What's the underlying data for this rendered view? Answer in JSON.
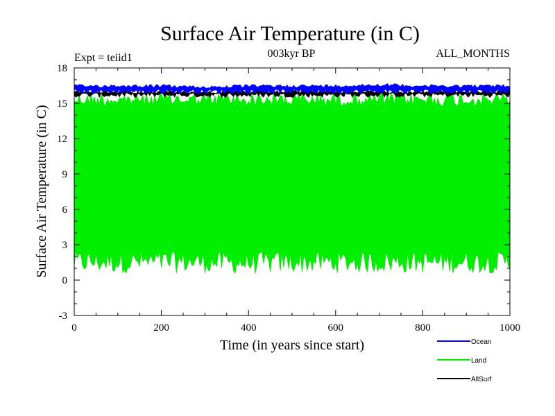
{
  "chart_data": {
    "type": "line",
    "title": "Surface Air Temperature (in C)",
    "subtitle": "003kyr BP",
    "expt_label": "Expt = teiid1",
    "months_label": "ALL_MONTHS",
    "xlabel": "Time (in years since start)",
    "ylabel": "Surface Air Temperature (in C)",
    "xlim": [
      0,
      1000
    ],
    "ylim": [
      -3,
      18
    ],
    "x_ticks": [
      0,
      200,
      400,
      600,
      800,
      1000
    ],
    "y_ticks": [
      -3,
      0,
      3,
      6,
      9,
      12,
      15,
      18
    ],
    "grid": false,
    "legend_position": "bottom-right",
    "series": [
      {
        "name": "Ocean",
        "color": "#0000ff",
        "x": [
          0,
          100,
          200,
          300,
          400,
          500,
          600,
          700,
          800,
          900,
          1000
        ],
        "min": [
          15.8,
          15.8,
          15.8,
          15.8,
          15.8,
          15.8,
          15.8,
          15.8,
          15.8,
          15.8,
          15.8
        ],
        "max": [
          16.6,
          16.6,
          16.6,
          16.5,
          16.6,
          16.6,
          16.6,
          16.7,
          16.6,
          16.6,
          16.6
        ]
      },
      {
        "name": "Land",
        "color": "#00ee00",
        "x": [
          0,
          100,
          200,
          300,
          400,
          500,
          600,
          700,
          800,
          900,
          1000
        ],
        "min": [
          0.6,
          0.6,
          0.6,
          0.6,
          0.5,
          0.6,
          0.6,
          0.6,
          0.6,
          0.6,
          0.6
        ],
        "max": [
          15.9,
          15.9,
          15.9,
          15.9,
          15.9,
          15.9,
          15.9,
          15.9,
          15.9,
          15.9,
          15.9
        ]
      },
      {
        "name": "AllSurf",
        "color": "#000000",
        "x": [
          0,
          100,
          200,
          300,
          400,
          500,
          600,
          700,
          800,
          900,
          1000
        ],
        "min": [
          15.5,
          15.5,
          15.5,
          15.5,
          15.5,
          15.5,
          15.5,
          15.5,
          15.5,
          15.5,
          15.5
        ],
        "max": [
          16.1,
          16.1,
          16.1,
          16.1,
          16.1,
          16.1,
          16.1,
          16.1,
          16.1,
          16.1,
          16.1
        ]
      }
    ]
  }
}
